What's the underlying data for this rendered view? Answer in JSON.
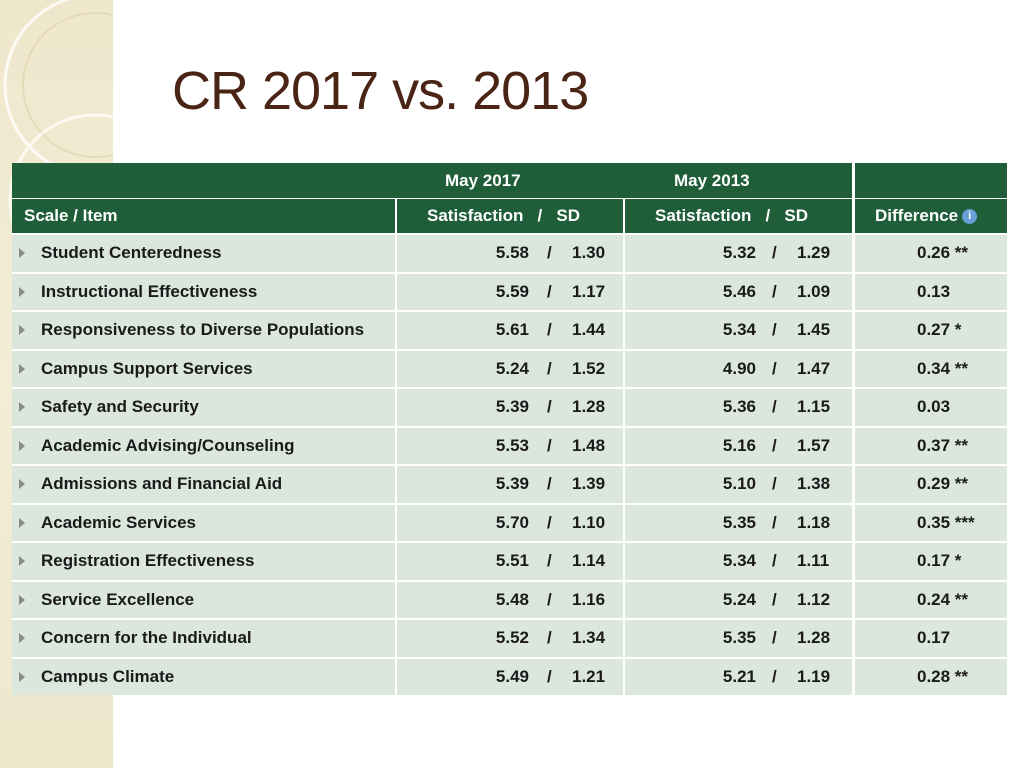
{
  "slide": {
    "title": "CR 2017 vs. 2013"
  },
  "table": {
    "group_headers": {
      "col2": "May 2017",
      "col3": "May 2013"
    },
    "columns": {
      "item": "Scale / Item",
      "sat_sd_2017": "Satisfaction   /   SD",
      "sat_sd_2013": "Satisfaction   /   SD",
      "difference": "Difference"
    },
    "rows": [
      {
        "name": "Student Centeredness",
        "sat2017": "5.58",
        "sd2017": "1.30",
        "sat2013": "5.32",
        "sd2013": "1.29",
        "diff": "0.26 **"
      },
      {
        "name": "Instructional Effectiveness",
        "sat2017": "5.59",
        "sd2017": "1.17",
        "sat2013": "5.46",
        "sd2013": "1.09",
        "diff": "0.13"
      },
      {
        "name": "Responsiveness to Diverse Populations",
        "sat2017": "5.61",
        "sd2017": "1.44",
        "sat2013": "5.34",
        "sd2013": "1.45",
        "diff": "0.27 *"
      },
      {
        "name": "Campus Support Services",
        "sat2017": "5.24",
        "sd2017": "1.52",
        "sat2013": "4.90",
        "sd2013": "1.47",
        "diff": "0.34 **"
      },
      {
        "name": "Safety and Security",
        "sat2017": "5.39",
        "sd2017": "1.28",
        "sat2013": "5.36",
        "sd2013": "1.15",
        "diff": "0.03"
      },
      {
        "name": "Academic Advising/Counseling",
        "sat2017": "5.53",
        "sd2017": "1.48",
        "sat2013": "5.16",
        "sd2013": "1.57",
        "diff": "0.37 **"
      },
      {
        "name": "Admissions and Financial Aid",
        "sat2017": "5.39",
        "sd2017": "1.39",
        "sat2013": "5.10",
        "sd2013": "1.38",
        "diff": "0.29 **"
      },
      {
        "name": "Academic Services",
        "sat2017": "5.70",
        "sd2017": "1.10",
        "sat2013": "5.35",
        "sd2013": "1.18",
        "diff": "0.35 ***"
      },
      {
        "name": "Registration Effectiveness",
        "sat2017": "5.51",
        "sd2017": "1.14",
        "sat2013": "5.34",
        "sd2013": "1.11",
        "diff": "0.17 *"
      },
      {
        "name": "Service Excellence",
        "sat2017": "5.48",
        "sd2017": "1.16",
        "sat2013": "5.24",
        "sd2013": "1.12",
        "diff": "0.24 **"
      },
      {
        "name": "Concern for the Individual",
        "sat2017": "5.52",
        "sd2017": "1.34",
        "sat2013": "5.35",
        "sd2013": "1.28",
        "diff": "0.17"
      },
      {
        "name": "Campus Climate",
        "sat2017": "5.49",
        "sd2017": "1.21",
        "sat2013": "5.21",
        "sd2013": "1.19",
        "diff": "0.28 **"
      }
    ],
    "slash": "/",
    "info_icon_glyph": "i"
  }
}
